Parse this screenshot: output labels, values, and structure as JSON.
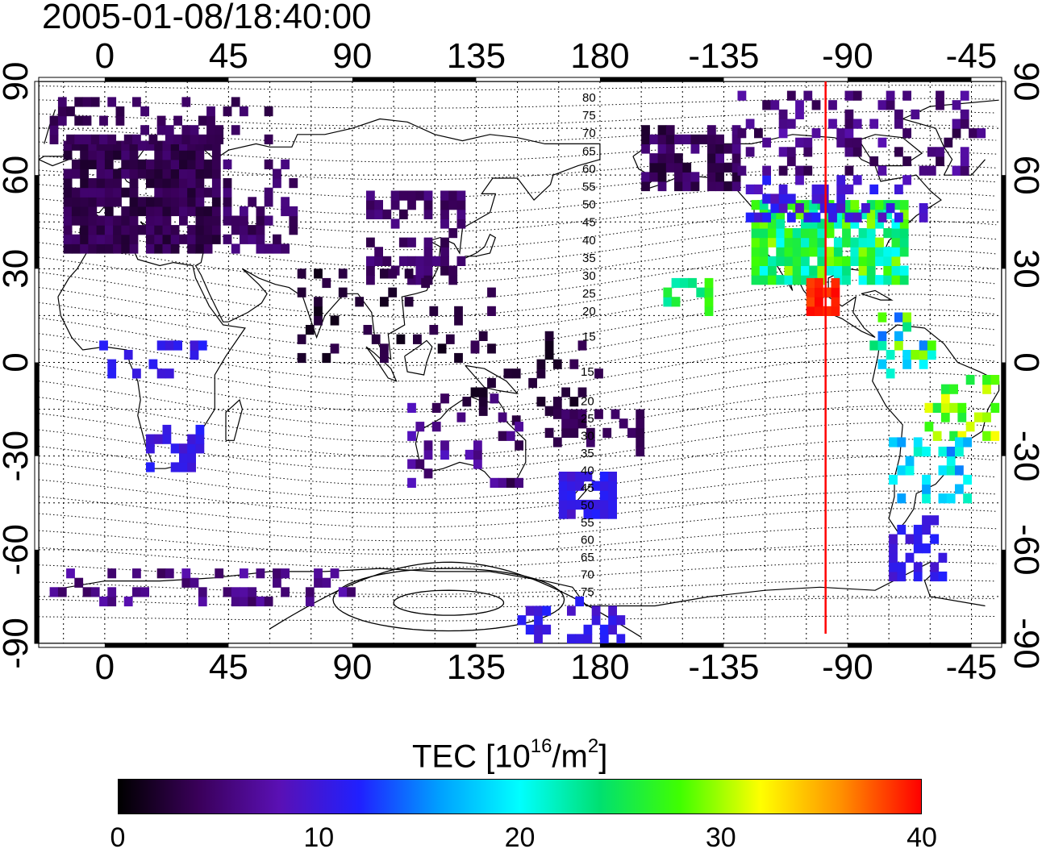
{
  "title": "2005-01-08/18:40:00",
  "map": {
    "lon_ticks": [
      "0",
      "45",
      "90",
      "135",
      "180",
      "-135",
      "-90",
      "-45"
    ],
    "lat_ticks": [
      "90",
      "60",
      "30",
      "0",
      "-30",
      "-60",
      "-90"
    ],
    "lon_range": [
      -24,
      326
    ],
    "lat_range": [
      -90,
      90
    ],
    "grid": true,
    "terminator_longitude": -98,
    "terminator_color": "#ff0000",
    "contour_labels_north": [
      "80",
      "75",
      "70",
      "65",
      "60",
      "55",
      "50",
      "45",
      "40",
      "35",
      "30",
      "25",
      "20",
      "15"
    ],
    "contour_labels_south": [
      "15",
      "20",
      "25",
      "30",
      "35",
      "40",
      "45",
      "50",
      "55",
      "60",
      "65",
      "70",
      "75"
    ]
  },
  "colorbar": {
    "title_main": "TEC  [10",
    "title_exp1": "16",
    "title_mid": "/m",
    "title_exp2": "2",
    "title_end": "]",
    "ticks": [
      "0",
      "10",
      "20",
      "30",
      "40"
    ],
    "range": [
      0,
      40
    ],
    "colors": [
      "#000000",
      "#3a005a",
      "#5a10b4",
      "#2020ff",
      "#00a0ff",
      "#00ffff",
      "#00e070",
      "#40ff00",
      "#ffff00",
      "#ff9000",
      "#ff0000"
    ]
  }
}
